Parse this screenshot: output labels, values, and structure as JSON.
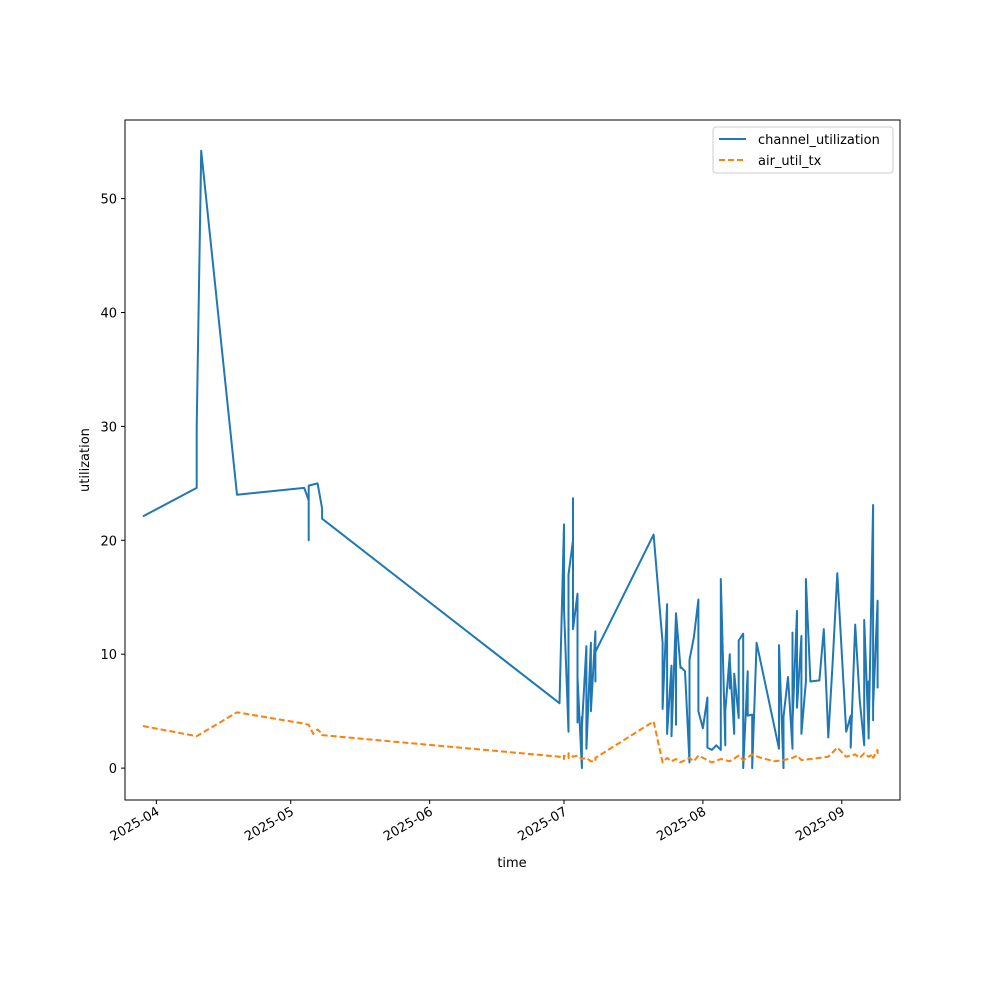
{
  "chart_data": {
    "type": "line",
    "title": "",
    "xlabel": "time",
    "ylabel": "utilization",
    "x_ticks": [
      "2025-04-01",
      "2025-05-01",
      "2025-06-01",
      "2025-07-01",
      "2025-08-01",
      "2025-09-01"
    ],
    "x_tick_labels": [
      "2025-04",
      "2025-05",
      "2025-06",
      "2025-07",
      "2025-08",
      "2025-09"
    ],
    "xlim": [
      "2025-03-25",
      "2025-09-14"
    ],
    "y_ticks": [
      0,
      10,
      20,
      30,
      40,
      50
    ],
    "ylim": [
      -2.8,
      56.9
    ],
    "grid": false,
    "legend_position": "top-right",
    "series": [
      {
        "name": "channel_utilization",
        "color": "#1f77b4",
        "line_style": "solid",
        "points": [
          [
            "2025-03-29",
            22.1
          ],
          [
            "2025-04-10",
            24.6
          ],
          [
            "2025-04-10",
            30.0
          ],
          [
            "2025-04-11",
            54.2
          ],
          [
            "2025-04-19",
            24.0
          ],
          [
            "2025-05-04",
            24.6
          ],
          [
            "2025-05-05",
            23.5
          ],
          [
            "2025-05-05",
            20.0
          ],
          [
            "2025-05-05",
            24.8
          ],
          [
            "2025-05-07",
            25.0
          ],
          [
            "2025-05-08",
            22.8
          ],
          [
            "2025-05-08",
            21.9
          ],
          [
            "2025-06-30",
            5.7
          ],
          [
            "2025-07-01",
            21.4
          ],
          [
            "2025-07-01",
            14.0
          ],
          [
            "2025-07-02",
            3.2
          ],
          [
            "2025-07-02",
            17.0
          ],
          [
            "2025-07-03",
            20.0
          ],
          [
            "2025-07-03",
            23.7
          ],
          [
            "2025-07-03",
            12.2
          ],
          [
            "2025-07-04",
            15.3
          ],
          [
            "2025-07-04",
            4.0
          ],
          [
            "2025-07-04",
            8.0
          ],
          [
            "2025-07-05",
            0.0
          ],
          [
            "2025-07-05",
            4.5
          ],
          [
            "2025-07-05",
            3.6
          ],
          [
            "2025-07-06",
            10.7
          ],
          [
            "2025-07-06",
            1.7
          ],
          [
            "2025-07-07",
            11.0
          ],
          [
            "2025-07-07",
            5.0
          ],
          [
            "2025-07-08",
            12.0
          ],
          [
            "2025-07-08",
            7.6
          ],
          [
            "2025-07-08",
            10.2
          ],
          [
            "2025-07-21",
            20.5
          ],
          [
            "2025-07-23",
            11.0
          ],
          [
            "2025-07-23",
            5.2
          ],
          [
            "2025-07-24",
            14.4
          ],
          [
            "2025-07-24",
            3.0
          ],
          [
            "2025-07-25",
            9.0
          ],
          [
            "2025-07-25",
            2.8
          ],
          [
            "2025-07-26",
            13.5
          ],
          [
            "2025-07-26",
            3.8
          ],
          [
            "2025-07-26",
            13.6
          ],
          [
            "2025-07-27",
            8.8
          ],
          [
            "2025-07-27",
            8.9
          ],
          [
            "2025-07-28",
            8.5
          ],
          [
            "2025-07-29",
            0.5
          ],
          [
            "2025-07-29",
            9.5
          ],
          [
            "2025-07-30",
            11.5
          ],
          [
            "2025-07-31",
            14.8
          ],
          [
            "2025-07-31",
            5.0
          ],
          [
            "2025-08-01",
            3.5
          ],
          [
            "2025-08-02",
            6.2
          ],
          [
            "2025-08-02",
            1.8
          ],
          [
            "2025-08-03",
            1.6
          ],
          [
            "2025-08-04",
            2.0
          ],
          [
            "2025-08-05",
            1.6
          ],
          [
            "2025-08-05",
            16.6
          ],
          [
            "2025-08-06",
            2.0
          ],
          [
            "2025-08-06",
            5.0
          ],
          [
            "2025-08-07",
            10.0
          ],
          [
            "2025-08-07",
            7.0
          ],
          [
            "2025-08-07",
            9.5
          ],
          [
            "2025-08-08",
            3.0
          ],
          [
            "2025-08-08",
            8.3
          ],
          [
            "2025-08-09",
            4.4
          ],
          [
            "2025-08-09",
            11.2
          ],
          [
            "2025-08-10",
            11.8
          ],
          [
            "2025-08-10",
            0.0
          ],
          [
            "2025-08-11",
            8.5
          ],
          [
            "2025-08-11",
            4.6
          ],
          [
            "2025-08-12",
            4.7
          ],
          [
            "2025-08-12",
            0.0
          ],
          [
            "2025-08-13",
            11.0
          ],
          [
            "2025-08-18",
            1.7
          ],
          [
            "2025-08-18",
            10.8
          ],
          [
            "2025-08-19",
            0.0
          ],
          [
            "2025-08-19",
            4.5
          ],
          [
            "2025-08-20",
            8.0
          ],
          [
            "2025-08-21",
            1.7
          ],
          [
            "2025-08-21",
            11.9
          ],
          [
            "2025-08-21",
            4.0
          ],
          [
            "2025-08-22",
            13.8
          ],
          [
            "2025-08-22",
            5.3
          ],
          [
            "2025-08-23",
            11.6
          ],
          [
            "2025-08-23",
            3.0
          ],
          [
            "2025-08-24",
            7.6
          ],
          [
            "2025-08-24",
            16.6
          ],
          [
            "2025-08-25",
            7.6
          ],
          [
            "2025-08-27",
            7.7
          ],
          [
            "2025-08-28",
            12.2
          ],
          [
            "2025-08-29",
            2.7
          ],
          [
            "2025-08-30",
            9.5
          ],
          [
            "2025-08-31",
            17.1
          ],
          [
            "2025-09-02",
            3.2
          ],
          [
            "2025-09-03",
            4.6
          ],
          [
            "2025-09-03",
            1.8
          ],
          [
            "2025-09-04",
            12.6
          ],
          [
            "2025-09-05",
            6.0
          ],
          [
            "2025-09-06",
            2.0
          ],
          [
            "2025-09-06",
            13.0
          ],
          [
            "2025-09-07",
            3.0
          ],
          [
            "2025-09-07",
            7.6
          ],
          [
            "2025-09-07",
            2.6
          ],
          [
            "2025-09-08",
            23.1
          ],
          [
            "2025-09-08",
            4.2
          ],
          [
            "2025-09-08",
            17.8
          ],
          [
            "2025-09-08",
            5.4
          ],
          [
            "2025-09-09",
            14.7
          ],
          [
            "2025-09-09",
            7.0
          ]
        ]
      },
      {
        "name": "air_util_tx",
        "color": "#ff7f0e",
        "line_style": "dashed",
        "points": [
          [
            "2025-03-29",
            3.7
          ],
          [
            "2025-04-10",
            2.8
          ],
          [
            "2025-04-19",
            4.9
          ],
          [
            "2025-05-04",
            3.9
          ],
          [
            "2025-05-05",
            3.8
          ],
          [
            "2025-05-06",
            3.0
          ],
          [
            "2025-05-07",
            3.4
          ],
          [
            "2025-05-08",
            3.0
          ],
          [
            "2025-05-08",
            2.9
          ],
          [
            "2025-06-30",
            1.0
          ],
          [
            "2025-07-01",
            0.8
          ],
          [
            "2025-07-01",
            1.1
          ],
          [
            "2025-07-02",
            0.9
          ],
          [
            "2025-07-02",
            1.3
          ],
          [
            "2025-07-03",
            1.0
          ],
          [
            "2025-07-04",
            1.1
          ],
          [
            "2025-07-05",
            0.8
          ],
          [
            "2025-07-06",
            0.9
          ],
          [
            "2025-07-07",
            0.6
          ],
          [
            "2025-07-08",
            0.6
          ],
          [
            "2025-07-08",
            0.9
          ],
          [
            "2025-07-21",
            4.1
          ],
          [
            "2025-07-23",
            0.5
          ],
          [
            "2025-07-24",
            0.9
          ],
          [
            "2025-07-25",
            0.6
          ],
          [
            "2025-07-26",
            0.8
          ],
          [
            "2025-07-27",
            0.5
          ],
          [
            "2025-07-29",
            0.9
          ],
          [
            "2025-07-30",
            0.6
          ],
          [
            "2025-07-31",
            1.1
          ],
          [
            "2025-08-02",
            0.7
          ],
          [
            "2025-08-03",
            0.5
          ],
          [
            "2025-08-05",
            0.8
          ],
          [
            "2025-08-07",
            0.6
          ],
          [
            "2025-08-09",
            1.1
          ],
          [
            "2025-08-10",
            0.7
          ],
          [
            "2025-08-12",
            1.2
          ],
          [
            "2025-08-14",
            0.9
          ],
          [
            "2025-08-17",
            0.6
          ],
          [
            "2025-08-19",
            0.7
          ],
          [
            "2025-08-21",
            0.9
          ],
          [
            "2025-08-22",
            1.1
          ],
          [
            "2025-08-23",
            0.7
          ],
          [
            "2025-08-25",
            0.8
          ],
          [
            "2025-08-27",
            0.9
          ],
          [
            "2025-08-29",
            1.0
          ],
          [
            "2025-08-31",
            1.8
          ],
          [
            "2025-09-02",
            1.0
          ],
          [
            "2025-09-04",
            1.2
          ],
          [
            "2025-09-05",
            0.9
          ],
          [
            "2025-09-06",
            1.3
          ],
          [
            "2025-09-07",
            1.0
          ],
          [
            "2025-09-08",
            1.2
          ],
          [
            "2025-09-08",
            0.9
          ],
          [
            "2025-09-09",
            1.6
          ],
          [
            "2025-09-09",
            1.1
          ]
        ]
      }
    ]
  }
}
